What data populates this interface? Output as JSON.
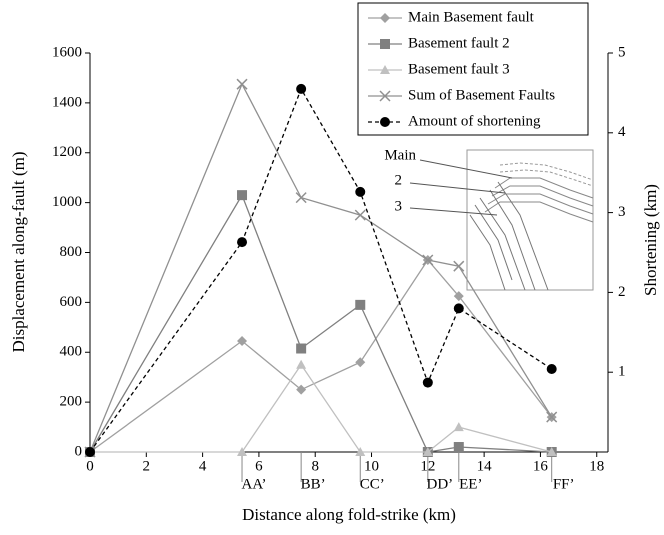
{
  "chart_data": {
    "type": "line",
    "x_label": "Distance along fold-strike (km)",
    "y_label": "Displacement along-fault (m)",
    "y2_label": "Shortening (km)",
    "x": [
      0,
      5.4,
      7.5,
      9.6,
      12,
      13.1,
      16.4
    ],
    "xlim": [
      0,
      18.4
    ],
    "xticks": [
      0,
      2,
      4,
      6,
      8,
      10,
      12,
      14,
      16,
      18
    ],
    "ylim": [
      0,
      1600
    ],
    "yticks": [
      0,
      200,
      400,
      600,
      800,
      1000,
      1200,
      1400,
      1600
    ],
    "y2lim": [
      0,
      5
    ],
    "y2ticks": [
      1,
      2,
      3,
      4,
      5
    ],
    "section_labels": {
      "x": [
        5.4,
        7.5,
        9.6,
        12,
        13.1,
        16.4
      ],
      "labels": [
        "AA’",
        "BB’",
        "CC’",
        "DD’",
        "EE’",
        "FF’"
      ]
    },
    "series": [
      {
        "name": "Main Basement fault",
        "color": "#a0a0a0",
        "marker": "diamond",
        "dash": false,
        "values": [
          0,
          445,
          250,
          360,
          770,
          625,
          140
        ]
      },
      {
        "name": "Basement fault 2",
        "color": "#808080",
        "marker": "square",
        "dash": false,
        "values": [
          0,
          1030,
          415,
          590,
          0,
          20,
          0
        ]
      },
      {
        "name": "Basement fault 3",
        "color": "#c0c0c0",
        "marker": "triangle",
        "dash": false,
        "values": [
          0,
          0,
          350,
          0,
          0,
          100,
          0
        ]
      },
      {
        "name": "Sum of Basement Faults",
        "color": "#909090",
        "marker": "x",
        "dash": false,
        "values": [
          0,
          1475,
          1020,
          950,
          770,
          745,
          140
        ]
      },
      {
        "name": "Amount of shortening",
        "color": "#000000",
        "marker": "circle",
        "dash": true,
        "axis": "y2",
        "values": [
          0,
          2.63,
          4.55,
          3.26,
          0.87,
          1.8,
          1.04
        ]
      }
    ],
    "legend": "top-right",
    "inset": {
      "labels": [
        "Main",
        "2",
        "3"
      ]
    }
  }
}
